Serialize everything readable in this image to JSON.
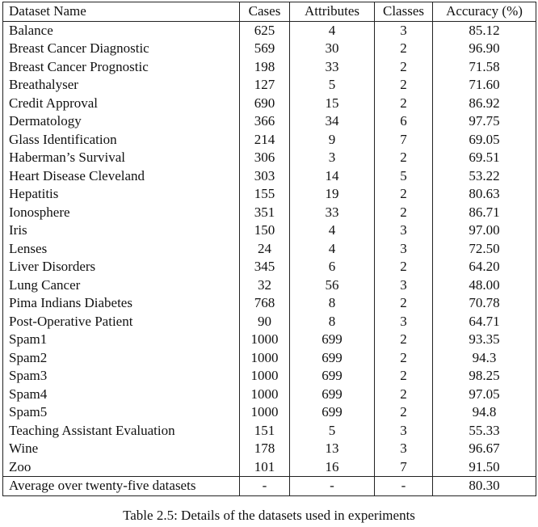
{
  "table": {
    "headers": [
      "Dataset Name",
      "Cases",
      "Attributes",
      "Classes",
      "Accuracy (%)"
    ],
    "rows": [
      [
        "Balance",
        "625",
        "4",
        "3",
        "85.12"
      ],
      [
        "Breast Cancer Diagnostic",
        "569",
        "30",
        "2",
        "96.90"
      ],
      [
        "Breast Cancer Prognostic",
        "198",
        "33",
        "2",
        "71.58"
      ],
      [
        "Breathalyser",
        "127",
        "5",
        "2",
        "71.60"
      ],
      [
        "Credit Approval",
        "690",
        "15",
        "2",
        "86.92"
      ],
      [
        "Dermatology",
        "366",
        "34",
        "6",
        "97.75"
      ],
      [
        "Glass Identification",
        "214",
        "9",
        "7",
        "69.05"
      ],
      [
        "Haberman’s Survival",
        "306",
        "3",
        "2",
        "69.51"
      ],
      [
        "Heart Disease Cleveland",
        "303",
        "14",
        "5",
        "53.22"
      ],
      [
        "Hepatitis",
        "155",
        "19",
        "2",
        "80.63"
      ],
      [
        "Ionosphere",
        "351",
        "33",
        "2",
        "86.71"
      ],
      [
        "Iris",
        "150",
        "4",
        "3",
        "97.00"
      ],
      [
        "Lenses",
        "24",
        "4",
        "3",
        "72.50"
      ],
      [
        "Liver Disorders",
        "345",
        "6",
        "2",
        "64.20"
      ],
      [
        "Lung Cancer",
        "32",
        "56",
        "3",
        "48.00"
      ],
      [
        "Pima Indians Diabetes",
        "768",
        "8",
        "2",
        "70.78"
      ],
      [
        "Post-Operative Patient",
        "90",
        "8",
        "3",
        "64.71"
      ],
      [
        "Spam1",
        "1000",
        "699",
        "2",
        "93.35"
      ],
      [
        "Spam2",
        "1000",
        "699",
        "2",
        "94.3"
      ],
      [
        "Spam3",
        "1000",
        "699",
        "2",
        "98.25"
      ],
      [
        "Spam4",
        "1000",
        "699",
        "2",
        "97.05"
      ],
      [
        "Spam5",
        "1000",
        "699",
        "2",
        "94.8"
      ],
      [
        "Teaching Assistant Evaluation",
        "151",
        "5",
        "3",
        "55.33"
      ],
      [
        "Wine",
        "178",
        "13",
        "3",
        "96.67"
      ],
      [
        "Zoo",
        "101",
        "16",
        "7",
        "91.50"
      ]
    ],
    "footer": [
      "Average over twenty-five datasets",
      "-",
      "-",
      "-",
      "80.30"
    ]
  },
  "caption": "Table 2.5: Details of the datasets used in experiments"
}
